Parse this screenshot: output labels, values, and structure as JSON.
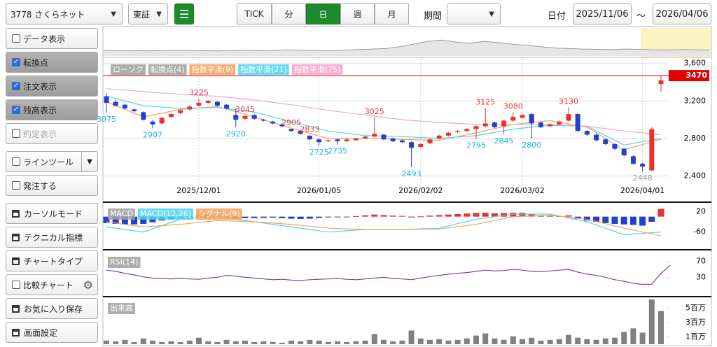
{
  "toolbar": {
    "symbol": "3778 さくらネット",
    "market": "東証",
    "intervals": [
      "TICK",
      "分",
      "日",
      "週",
      "月"
    ],
    "active_interval": 2,
    "period_label": "期間",
    "date_label": "日付",
    "date_from": "2025/11/06",
    "date_sep": "～",
    "date_to": "2026/04/06"
  },
  "sidebar": [
    {
      "label": "データ表示",
      "check": false
    },
    {
      "label": "転換点",
      "check": true
    },
    {
      "label": "注文表示",
      "check": true
    },
    {
      "label": "残高表示",
      "check": true
    },
    {
      "label": "約定表示",
      "check": false,
      "disabled": true
    },
    {
      "label": "ラインツール",
      "check": false,
      "menu": true
    },
    {
      "label": "発注する",
      "check": false
    },
    {
      "label": "カーソルモード"
    },
    {
      "label": "テクニカル指標"
    },
    {
      "label": "チャートタイプ"
    },
    {
      "label": "比較チャート",
      "check": false,
      "gear": true
    },
    {
      "label": "お気に入り保存"
    },
    {
      "label": "画面設定"
    }
  ],
  "chart_data": [
    {
      "type": "candlestick",
      "legend": [
        {
          "name": "ローソク",
          "color": "#a0a0a0"
        },
        {
          "name": "転換点(4)",
          "color": "#a0a0a0"
        }
      ],
      "categories": [
        null,
        null,
        null,
        null,
        null,
        null,
        null,
        null,
        null,
        null,
        "2025/12/01",
        null,
        null,
        null,
        null,
        null,
        null,
        null,
        null,
        null,
        null,
        null,
        null,
        "2026/01/05",
        null,
        null,
        null,
        null,
        null,
        null,
        null,
        null,
        null,
        null,
        "2026/02/02",
        null,
        null,
        null,
        null,
        null,
        null,
        null,
        null,
        null,
        null,
        "2026/03/02",
        null,
        null,
        null,
        null,
        null,
        null,
        null,
        null,
        null,
        null,
        null,
        null,
        "2026/04/01",
        null,
        null
      ],
      "open": [
        3250,
        3190,
        3160,
        3110,
        3080,
        2980,
        2960,
        3030,
        3070,
        3110,
        3150,
        3180,
        3190,
        3160,
        3050,
        3010,
        3050,
        3000,
        2980,
        2950,
        2900,
        2880,
        2830,
        2790,
        2770,
        2790,
        2770,
        2780,
        2800,
        2820,
        2840,
        2800,
        2780,
        2760,
        2710,
        2750,
        2800,
        2830,
        2870,
        2880,
        2900,
        2930,
        2970,
        2930,
        2990,
        3020,
        3060,
        2970,
        2930,
        2950,
        2990,
        3060,
        2880,
        2840,
        2790,
        2740,
        2690,
        2610,
        2530,
        2460,
        3380
      ],
      "high": [
        3280,
        3210,
        3170,
        3120,
        3090,
        3000,
        3030,
        3070,
        3110,
        3150,
        3225,
        3210,
        3200,
        3170,
        3120,
        3045,
        3060,
        3010,
        2990,
        2960,
        2905,
        2890,
        2833,
        2800,
        2790,
        2800,
        2800,
        2810,
        2830,
        3025,
        2850,
        2810,
        2790,
        2770,
        2750,
        2800,
        2840,
        2870,
        2890,
        2910,
        2940,
        3125,
        2980,
        3000,
        3080,
        3060,
        3070,
        2980,
        2960,
        2990,
        3130,
        3070,
        2890,
        2850,
        2800,
        2750,
        2700,
        2620,
        2540,
        2920,
        3470
      ],
      "low": [
        3075,
        3140,
        3110,
        3080,
        2990,
        2907,
        2950,
        3020,
        3060,
        3100,
        3140,
        3170,
        3140,
        3110,
        2920,
        3000,
        3000,
        2980,
        2950,
        2920,
        2870,
        2840,
        2780,
        2725,
        2760,
        2735,
        2760,
        2770,
        2790,
        2810,
        2780,
        2760,
        2750,
        2493,
        2700,
        2740,
        2790,
        2820,
        2860,
        2870,
        2795,
        2920,
        2910,
        2845,
        2980,
        3010,
        2800,
        2910,
        2920,
        2940,
        2980,
        2870,
        2830,
        2770,
        2730,
        2680,
        2610,
        2520,
        2448,
        2450,
        3300
      ],
      "close": [
        3180,
        3150,
        3120,
        3090,
        3000,
        2950,
        3020,
        3060,
        3100,
        3140,
        3180,
        3200,
        3150,
        3120,
        3000,
        3040,
        3010,
        2990,
        2960,
        2930,
        2880,
        2850,
        2790,
        2760,
        2780,
        2770,
        2790,
        2800,
        2820,
        2850,
        2790,
        2770,
        2760,
        2700,
        2740,
        2790,
        2830,
        2860,
        2880,
        2900,
        2930,
        2960,
        2920,
        2990,
        3030,
        3050,
        2960,
        2920,
        2950,
        2980,
        3060,
        2880,
        2840,
        2780,
        2740,
        2690,
        2620,
        2530,
        2500,
        2900,
        3420
      ],
      "up_color": "#e8322f",
      "down_color": "#2340c8",
      "series": [
        {
          "name": "指数平滑(9)",
          "color": "#f5a05a",
          "x": [
            0,
            4,
            8,
            12,
            16,
            20,
            24,
            28,
            32,
            36,
            40,
            44,
            48,
            52,
            56,
            60
          ],
          "values": [
            3190,
            3030,
            3110,
            3140,
            3030,
            2910,
            2800,
            2800,
            2790,
            2780,
            2860,
            2950,
            2990,
            2920,
            2680,
            2790
          ]
        },
        {
          "name": "指数平滑(21)",
          "color": "#4fd3f0",
          "x": [
            0,
            4,
            8,
            12,
            16,
            20,
            24,
            28,
            32,
            36,
            40,
            44,
            48,
            52,
            56,
            60
          ],
          "values": [
            3250,
            3150,
            3120,
            3130,
            3080,
            2980,
            2880,
            2830,
            2820,
            2800,
            2830,
            2900,
            2940,
            2930,
            2730,
            2800
          ]
        },
        {
          "name": "指数平滑(75)",
          "color": "#f2a6c8",
          "x": [
            0,
            4,
            8,
            12,
            16,
            20,
            24,
            28,
            32,
            36,
            40,
            44,
            48,
            52,
            56,
            60
          ],
          "values": [
            3330,
            3300,
            3270,
            3250,
            3210,
            3160,
            3100,
            3050,
            3000,
            2970,
            2950,
            2950,
            2950,
            2930,
            2880,
            2840
          ]
        }
      ],
      "turning_points": [
        {
          "index": 0,
          "value": 3075,
          "kind": "low",
          "color": "#1fb4e8"
        },
        {
          "index": 5,
          "value": 2907,
          "kind": "low",
          "color": "#1fb4e8"
        },
        {
          "index": 10,
          "value": 3225,
          "kind": "high",
          "color": "#e53935"
        },
        {
          "index": 14,
          "value": 2920,
          "kind": "low",
          "color": "#1fb4e8"
        },
        {
          "index": 15,
          "value": 3045,
          "kind": "high",
          "color": "#e53935"
        },
        {
          "index": 20,
          "value": 2905,
          "kind": "high",
          "color": "#e53935"
        },
        {
          "index": 22,
          "value": 2833,
          "kind": "high",
          "color": "#e53935"
        },
        {
          "index": 23,
          "value": 2725,
          "kind": "low",
          "color": "#1fb4e8"
        },
        {
          "index": 25,
          "value": 2735,
          "kind": "low",
          "color": "#1fb4e8"
        },
        {
          "index": 29,
          "value": 3025,
          "kind": "high",
          "color": "#e53935"
        },
        {
          "index": 33,
          "value": 2493,
          "kind": "low",
          "color": "#1fb4e8"
        },
        {
          "index": 40,
          "value": 2795,
          "kind": "low",
          "color": "#1fb4e8"
        },
        {
          "index": 41,
          "value": 3125,
          "kind": "high",
          "color": "#e53935"
        },
        {
          "index": 43,
          "value": 2845,
          "kind": "low",
          "color": "#1fb4e8"
        },
        {
          "index": 44,
          "value": 3080,
          "kind": "high",
          "color": "#e53935"
        },
        {
          "index": 46,
          "value": 2800,
          "kind": "low",
          "color": "#1fb4e8"
        },
        {
          "index": 50,
          "value": 3130,
          "kind": "high",
          "color": "#e53935"
        },
        {
          "index": 58,
          "value": 2448,
          "kind": "low",
          "color": "#999999"
        }
      ],
      "order_line": {
        "value": 3470,
        "color": "#e00000"
      },
      "ylim": [
        2150,
        3650
      ],
      "yticks": [
        {
          "value": 3600,
          "label": "3,600"
        },
        {
          "value": 3200,
          "label": "3,200"
        },
        {
          "value": 2800,
          "label": "2,800"
        },
        {
          "value": 2400,
          "label": "2,400"
        }
      ],
      "grid": true
    },
    {
      "type": "macd",
      "legend": [
        {
          "name": "MACD",
          "color": "#a0a0a0"
        }
      ],
      "histogram": {
        "values": [
          -25,
          -28,
          -30,
          -30,
          -28,
          -22,
          -15,
          -10,
          -5,
          2,
          5,
          6,
          3,
          -2,
          -5,
          -6,
          -6,
          -5,
          -4,
          -6,
          -8,
          -9,
          -8,
          -5,
          -3,
          -2,
          -1,
          2,
          5,
          8,
          6,
          4,
          3,
          -2,
          1,
          4,
          6,
          8,
          10,
          12,
          14,
          15,
          13,
          14,
          15,
          15,
          10,
          5,
          3,
          2,
          5,
          -8,
          -15,
          -20,
          -25,
          -28,
          -30,
          -32,
          -35,
          -20,
          30
        ],
        "up_color": "#e8322f",
        "down_color": "#2340c8"
      },
      "series": [
        {
          "name": "MACD(12,26)",
          "color": "#4fd3f0",
          "x": [
            0,
            4,
            8,
            12,
            16,
            20,
            24,
            28,
            32,
            36,
            40,
            44,
            48,
            52,
            56,
            60
          ],
          "values": [
            -40,
            -60,
            -10,
            0,
            -20,
            -40,
            -60,
            -50,
            -50,
            -45,
            -10,
            10,
            10,
            -20,
            -70,
            -60
          ]
        },
        {
          "name": "シグナル(9)",
          "color": "#f5a05a",
          "x": [
            0,
            4,
            8,
            12,
            16,
            20,
            24,
            28,
            32,
            36,
            40,
            44,
            48,
            52,
            56,
            60
          ],
          "values": [
            -20,
            -40,
            -30,
            -15,
            -20,
            -30,
            -45,
            -50,
            -50,
            -48,
            -30,
            0,
            5,
            -10,
            -45,
            -75
          ]
        }
      ],
      "ylim": [
        -126,
        48
      ],
      "yticks": [
        20,
        -60
      ]
    },
    {
      "type": "line",
      "series": [
        {
          "name": "RSI(14)",
          "color": "#8e3ca8",
          "values": [
            48,
            45,
            40,
            36,
            31,
            28,
            27,
            26,
            27,
            26,
            25,
            28,
            30,
            35,
            33,
            30,
            28,
            26,
            24,
            25,
            23,
            22,
            24,
            25,
            26,
            27,
            25,
            24,
            26,
            28,
            30,
            27,
            26,
            24,
            28,
            32,
            35,
            38,
            40,
            42,
            45,
            48,
            46,
            47,
            50,
            48,
            45,
            44,
            46,
            48,
            50,
            43,
            38,
            35,
            30,
            24,
            20,
            15,
            12,
            13,
            40,
            60
          ]
        }
      ],
      "ylim": [
        -15,
        94
      ],
      "yticks": [
        70,
        30
      ]
    },
    {
      "type": "bar",
      "series": [
        {
          "name": "出来高",
          "color": "#808080",
          "values": [
            0.5,
            0.4,
            0.6,
            0.3,
            0.8,
            0.5,
            0.3,
            0.4,
            0.3,
            0.5,
            0.9,
            0.4,
            0.3,
            0.6,
            0.4,
            0.5,
            0.3,
            0.4,
            0.3,
            0.2,
            0.5,
            0.4,
            0.6,
            0.5,
            0.3,
            0.4,
            0.3,
            0.4,
            0.5,
            1.4,
            0.6,
            0.4,
            0.5,
            1.9,
            0.8,
            0.6,
            0.7,
            0.5,
            0.6,
            0.8,
            1.2,
            1.5,
            0.8,
            0.6,
            1.1,
            0.7,
            0.9,
            0.5,
            0.6,
            0.7,
            1.3,
            0.9,
            0.7,
            0.6,
            0.8,
            0.9,
            1.7,
            2.2,
            1.6,
            6.2,
            4.6
          ]
        }
      ],
      "ylim": [
        0,
        6.4
      ],
      "yticks": [
        {
          "value": 5,
          "label": "5百万"
        },
        {
          "value": 3,
          "label": "3百万"
        },
        {
          "value": 1,
          "label": "1百万"
        }
      ]
    },
    {
      "type": "area",
      "color": "#9a9a9a",
      "values": [
        22,
        20,
        21,
        19,
        20,
        22,
        21,
        20,
        19,
        21,
        22,
        20,
        21,
        23,
        22,
        21,
        20,
        22,
        24,
        26,
        28,
        35,
        45,
        55,
        60,
        52,
        48,
        55,
        50,
        44,
        40,
        35,
        30,
        28,
        26,
        25,
        24,
        26,
        25,
        23,
        22,
        24,
        23,
        22
      ],
      "ylim": [
        0,
        100
      ]
    }
  ]
}
